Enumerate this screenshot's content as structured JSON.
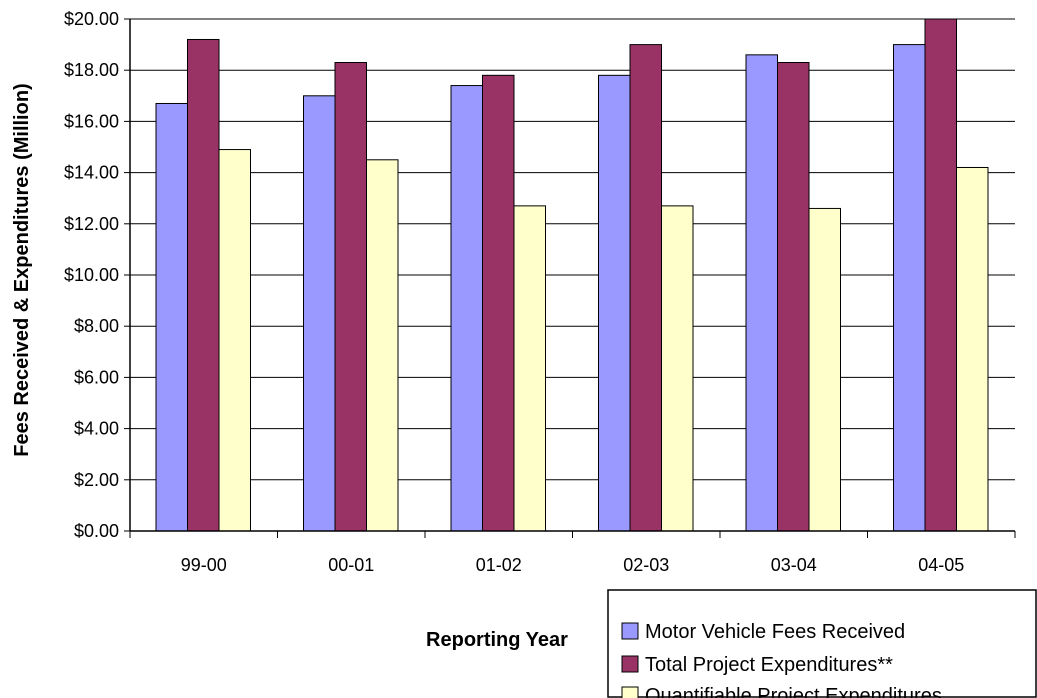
{
  "chart_data": {
    "type": "bar",
    "title": "",
    "xlabel": "Reporting Year",
    "ylabel": "Fees Received & Expenditures (Million)",
    "categories": [
      "99-00",
      "00-01",
      "01-02",
      "02-03",
      "03-04",
      "04-05"
    ],
    "ylim": [
      0,
      20
    ],
    "ytick_values": [
      0,
      2,
      4,
      6,
      8,
      10,
      12,
      14,
      16,
      18,
      20
    ],
    "ytick_labels": [
      "$0.00",
      "$2.00",
      "$4.00",
      "$6.00",
      "$8.00",
      "$10.00",
      "$12.00",
      "$14.00",
      "$16.00",
      "$18.00",
      "$20.00"
    ],
    "grid": true,
    "legend_position": "bottom-right",
    "series": [
      {
        "name": "Motor Vehicle Fees Received",
        "color": "#9999ff",
        "values": [
          16.7,
          17.0,
          17.4,
          17.8,
          18.6,
          19.0
        ]
      },
      {
        "name": "Total Project Expenditures**",
        "color": "#993366",
        "values": [
          19.2,
          18.3,
          17.8,
          19.0,
          18.3,
          20.2
        ]
      },
      {
        "name": "Quantifiable Project Expenditures",
        "color": "#ffffcc",
        "values": [
          14.9,
          14.5,
          12.7,
          12.7,
          12.6,
          14.2
        ]
      }
    ]
  }
}
